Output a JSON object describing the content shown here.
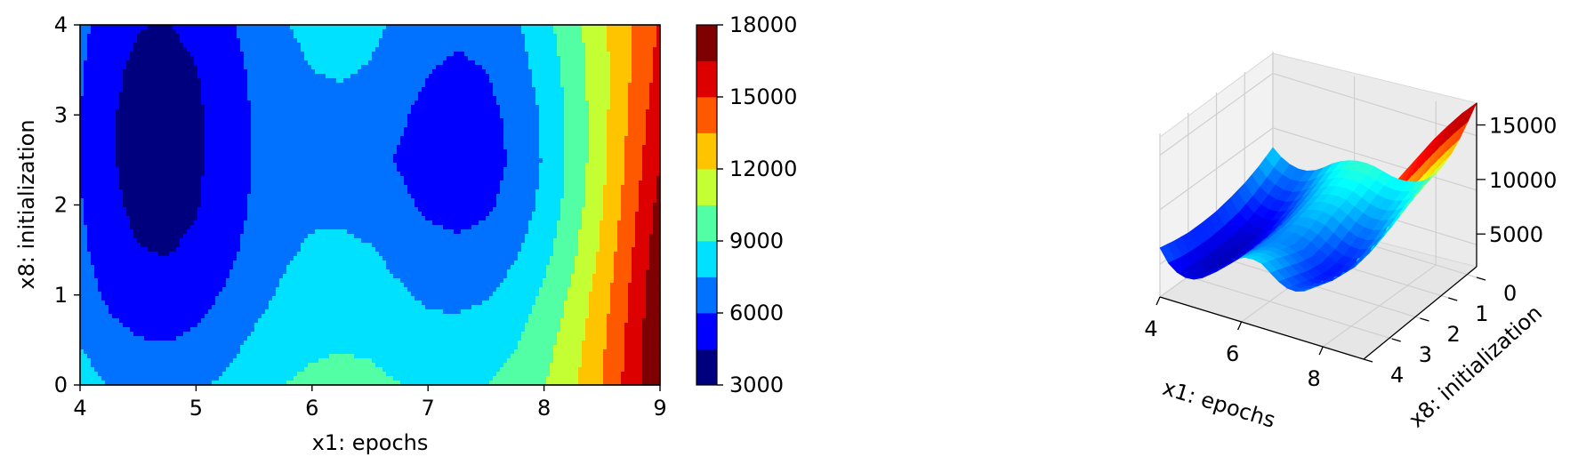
{
  "chart_data": [
    {
      "type": "heatmap",
      "subtype": "filled-contour",
      "colormap": "jet",
      "xlabel": "x1: epochs",
      "ylabel": "x8: initialization",
      "xlim": [
        4,
        9
      ],
      "ylim": [
        0,
        4
      ],
      "xticks": [
        "4",
        "5",
        "6",
        "7",
        "8",
        "9"
      ],
      "yticks": [
        "0",
        "1",
        "2",
        "3",
        "4"
      ],
      "x_grid": [
        4.0,
        4.25,
        4.5,
        4.75,
        5.0,
        5.25,
        5.5,
        5.75,
        6.0,
        6.25,
        6.5,
        6.75,
        7.0,
        7.25,
        7.5,
        7.75,
        8.0,
        8.25,
        8.5,
        8.75,
        9.0
      ],
      "y_grid": [
        0.0,
        0.5,
        1.0,
        1.5,
        2.0,
        2.5,
        3.0,
        3.5,
        4.0
      ],
      "z_values": [
        [
          8200,
          7400,
          7000,
          6900,
          7200,
          7800,
          8500,
          9000,
          9300,
          9400,
          9300,
          9050,
          8800,
          8800,
          9000,
          9500,
          10400,
          11700,
          13500,
          15700,
          18000
        ],
        [
          7400,
          6500,
          6050,
          5950,
          6250,
          6900,
          7700,
          8350,
          8700,
          8850,
          8750,
          8400,
          8050,
          8000,
          8250,
          8850,
          9900,
          11300,
          13200,
          15500,
          18000
        ],
        [
          6800,
          5700,
          5200,
          5050,
          5400,
          6150,
          7000,
          7700,
          8150,
          8300,
          8150,
          7700,
          7250,
          7150,
          7400,
          8100,
          9250,
          10800,
          12800,
          15200,
          17800
        ],
        [
          6400,
          5100,
          4550,
          4400,
          4750,
          5550,
          6500,
          7250,
          7700,
          7800,
          7600,
          7050,
          6500,
          6300,
          6500,
          7250,
          8500,
          10200,
          12300,
          14800,
          17500
        ],
        [
          6100,
          4800,
          4200,
          4050,
          4400,
          5200,
          6200,
          6900,
          7200,
          7150,
          6850,
          6300,
          5750,
          5500,
          5750,
          6550,
          7900,
          9700,
          11900,
          14400,
          17000
        ],
        [
          6000,
          4650,
          4050,
          3900,
          4250,
          5100,
          6100,
          6750,
          6900,
          6750,
          6400,
          5900,
          5400,
          5150,
          5400,
          6250,
          7650,
          9450,
          11600,
          14000,
          16500
        ],
        [
          6000,
          4650,
          4050,
          3900,
          4250,
          5100,
          6100,
          6750,
          7050,
          7100,
          6850,
          6200,
          5600,
          5300,
          5550,
          6400,
          7750,
          9500,
          11500,
          13800,
          16000
        ],
        [
          6200,
          4800,
          4250,
          4100,
          4450,
          5300,
          6300,
          7000,
          7500,
          7650,
          7400,
          6700,
          6050,
          5800,
          6000,
          6800,
          8100,
          9700,
          11500,
          13500,
          15500
        ],
        [
          6500,
          5100,
          4550,
          4450,
          4800,
          5650,
          6600,
          7350,
          7950,
          8100,
          7900,
          7200,
          6500,
          6250,
          6450,
          7250,
          8500,
          10000,
          11700,
          13400,
          15200
        ]
      ],
      "colorbar": {
        "levels": [
          3000,
          4500,
          6000,
          7500,
          9000,
          10500,
          12000,
          13500,
          15000,
          16500,
          18000
        ],
        "ticks": [
          "3000",
          "6000",
          "9000",
          "12000",
          "15000",
          "18000"
        ],
        "colors": [
          "#00007f",
          "#0000ff",
          "#0072ff",
          "#00e1ff",
          "#53ffa4",
          "#c4ff33",
          "#ffc400",
          "#ff5900",
          "#dd0000",
          "#7f0000"
        ]
      }
    },
    {
      "type": "surface-3d",
      "colormap": "jet",
      "xlabel": "x1: epochs",
      "ylabel": "x8: initialization",
      "xticks": [
        "4",
        "6",
        "8"
      ],
      "yticks": [
        "0",
        "1",
        "2",
        "3",
        "4"
      ],
      "zticks": [
        "5000",
        "10000",
        "15000"
      ],
      "grid": true,
      "data_source": "same surface as contour plot"
    }
  ]
}
